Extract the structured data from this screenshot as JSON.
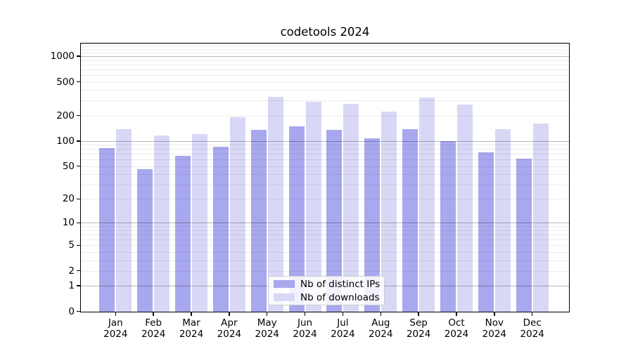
{
  "title": "codetools 2024",
  "chart_data": {
    "type": "bar",
    "title": "codetools 2024",
    "months": [
      "Jan",
      "Feb",
      "Mar",
      "Apr",
      "May",
      "Jun",
      "Jul",
      "Aug",
      "Sep",
      "Oct",
      "Nov",
      "Dec"
    ],
    "year": "2024",
    "categories": [
      "Jan 2024",
      "Feb 2024",
      "Mar 2024",
      "Apr 2024",
      "May 2024",
      "Jun 2024",
      "Jul 2024",
      "Aug 2024",
      "Sep 2024",
      "Oct 2024",
      "Nov 2024",
      "Dec 2024"
    ],
    "series": [
      {
        "name": "Nb of distinct IPs",
        "color": "#a8a8ee",
        "values": [
          82,
          46,
          67,
          86,
          135,
          148,
          136,
          108,
          137,
          100,
          73,
          61
        ]
      },
      {
        "name": "Nb of downloads",
        "color": "#d8d8f6",
        "values": [
          137,
          116,
          121,
          192,
          333,
          290,
          272,
          222,
          325,
          268,
          138,
          160
        ]
      }
    ],
    "yscale": "log10(1+y)",
    "yticks": [
      0,
      1,
      2,
      5,
      10,
      20,
      50,
      100,
      200,
      500,
      1000
    ],
    "y_major_gridlines": [
      1,
      10,
      100,
      1000
    ],
    "y_minor_gridlines": [
      2,
      3,
      4,
      5,
      6,
      7,
      8,
      9,
      20,
      30,
      40,
      50,
      60,
      70,
      80,
      90,
      200,
      300,
      400,
      500,
      600,
      700,
      800,
      900,
      1100,
      1200,
      1300,
      1400
    ],
    "ylim": [
      0,
      1440
    ],
    "xlabel": "",
    "ylabel": "",
    "grid": "horizontal",
    "legend_position": "inside-bottom-center"
  },
  "legend": {
    "items": [
      {
        "label": "Nb of distinct IPs",
        "color": "#a8a8ee"
      },
      {
        "label": "Nb of downloads",
        "color": "#d8d8f6"
      }
    ]
  }
}
